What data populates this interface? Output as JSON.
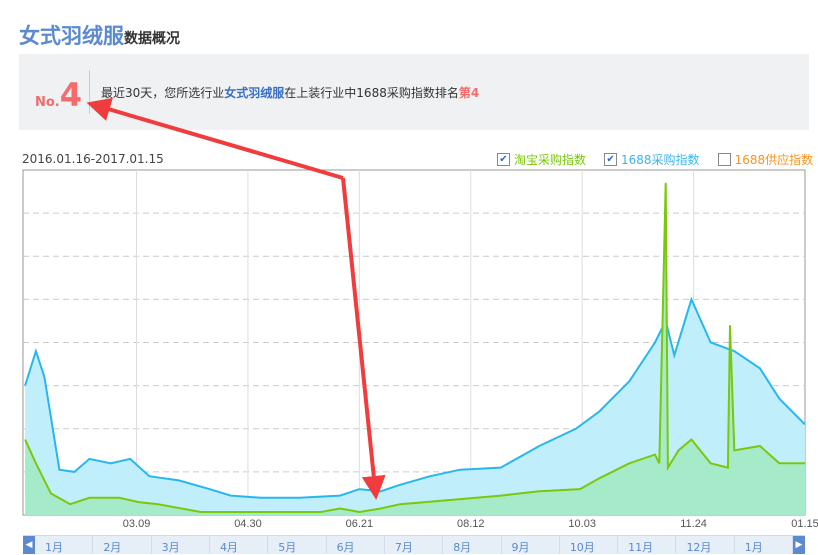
{
  "header": {
    "title": "女式羽绒服",
    "subtitle": "数据概况"
  },
  "rank": {
    "no_label": "No.",
    "no_value": "4",
    "text_pre": "最近30天，您所选行业",
    "text_industry": "女式羽绒服",
    "text_mid": "在上装行业中1688采购指数排名",
    "text_rank": "第4"
  },
  "date_range": "2016.01.16-2017.01.15",
  "legend": [
    {
      "label": "淘宝采购指数",
      "checked": true,
      "color": "#7ac70c"
    },
    {
      "label": "1688采购指数",
      "checked": true,
      "color": "#3cb4f0"
    },
    {
      "label": "1688供应指数",
      "checked": false,
      "color": "#f7941d"
    }
  ],
  "scroller": {
    "months": [
      "1月",
      "2月",
      "3月",
      "4月",
      "5月",
      "6月",
      "7月",
      "8月",
      "9月",
      "10月",
      "11月",
      "12月",
      "1月"
    ]
  },
  "chart_data": {
    "type": "area",
    "x_range": [
      "2016-01-16",
      "2017-01-15"
    ],
    "x_ticks": [
      "03.09",
      "04.30",
      "06.21",
      "08.12",
      "10.03",
      "11.24",
      "01.15"
    ],
    "x_tick_dates": [
      "2016-03-09",
      "2016-04-30",
      "2016-06-21",
      "2016-08-12",
      "2016-10-03",
      "2016-11-24",
      "2017-01-15"
    ],
    "ylim": [
      0,
      8
    ],
    "grid": true,
    "legend_position": "top-right",
    "series": [
      {
        "name": "1688采购指数",
        "color": "#29b6ef",
        "fill": "#bdeefb",
        "points": [
          [
            "2016-01-17",
            3.0
          ],
          [
            "2016-01-22",
            3.8
          ],
          [
            "2016-01-26",
            3.2
          ],
          [
            "2016-02-02",
            1.05
          ],
          [
            "2016-02-09",
            1.0
          ],
          [
            "2016-02-16",
            1.3
          ],
          [
            "2016-02-26",
            1.2
          ],
          [
            "2016-03-06",
            1.3
          ],
          [
            "2016-03-15",
            0.9
          ],
          [
            "2016-03-29",
            0.8
          ],
          [
            "2016-04-12",
            0.6
          ],
          [
            "2016-04-22",
            0.45
          ],
          [
            "2016-05-06",
            0.4
          ],
          [
            "2016-05-24",
            0.4
          ],
          [
            "2016-06-12",
            0.45
          ],
          [
            "2016-06-21",
            0.6
          ],
          [
            "2016-07-01",
            0.55
          ],
          [
            "2016-07-10",
            0.7
          ],
          [
            "2016-07-24",
            0.9
          ],
          [
            "2016-08-07",
            1.05
          ],
          [
            "2016-08-26",
            1.1
          ],
          [
            "2016-09-13",
            1.6
          ],
          [
            "2016-09-30",
            2.0
          ],
          [
            "2016-10-11",
            2.4
          ],
          [
            "2016-10-25",
            3.1
          ],
          [
            "2016-11-06",
            4.0
          ],
          [
            "2016-11-11",
            4.5
          ],
          [
            "2016-11-15",
            3.7
          ],
          [
            "2016-11-23",
            5.0
          ],
          [
            "2016-12-02",
            4.0
          ],
          [
            "2016-12-13",
            3.8
          ],
          [
            "2016-12-25",
            3.4
          ],
          [
            "2017-01-03",
            2.7
          ],
          [
            "2017-01-15",
            2.1
          ]
        ]
      },
      {
        "name": "淘宝采购指数",
        "color": "#7ac70c",
        "fill": "#a6ebc9",
        "points": [
          [
            "2016-01-17",
            1.75
          ],
          [
            "2016-01-22",
            1.2
          ],
          [
            "2016-01-29",
            0.5
          ],
          [
            "2016-02-07",
            0.25
          ],
          [
            "2016-02-16",
            0.4
          ],
          [
            "2016-03-01",
            0.4
          ],
          [
            "2016-03-10",
            0.3
          ],
          [
            "2016-03-19",
            0.25
          ],
          [
            "2016-04-08",
            0.07
          ],
          [
            "2016-05-01",
            0.07
          ],
          [
            "2016-06-03",
            0.07
          ],
          [
            "2016-06-12",
            0.15
          ],
          [
            "2016-06-21",
            0.07
          ],
          [
            "2016-07-01",
            0.15
          ],
          [
            "2016-07-10",
            0.25
          ],
          [
            "2016-08-03",
            0.35
          ],
          [
            "2016-08-26",
            0.45
          ],
          [
            "2016-09-13",
            0.55
          ],
          [
            "2016-10-02",
            0.6
          ],
          [
            "2016-10-11",
            0.85
          ],
          [
            "2016-10-25",
            1.2
          ],
          [
            "2016-11-06",
            1.4
          ],
          [
            "2016-11-08",
            1.2
          ],
          [
            "2016-11-11",
            7.7
          ],
          [
            "2016-11-12",
            1.1
          ],
          [
            "2016-11-17",
            1.5
          ],
          [
            "2016-11-23",
            1.75
          ],
          [
            "2016-12-02",
            1.2
          ],
          [
            "2016-12-10",
            1.1
          ],
          [
            "2016-12-11",
            4.4
          ],
          [
            "2016-12-13",
            1.5
          ],
          [
            "2016-12-25",
            1.6
          ],
          [
            "2017-01-03",
            1.2
          ],
          [
            "2017-01-15",
            1.2
          ]
        ]
      }
    ]
  }
}
